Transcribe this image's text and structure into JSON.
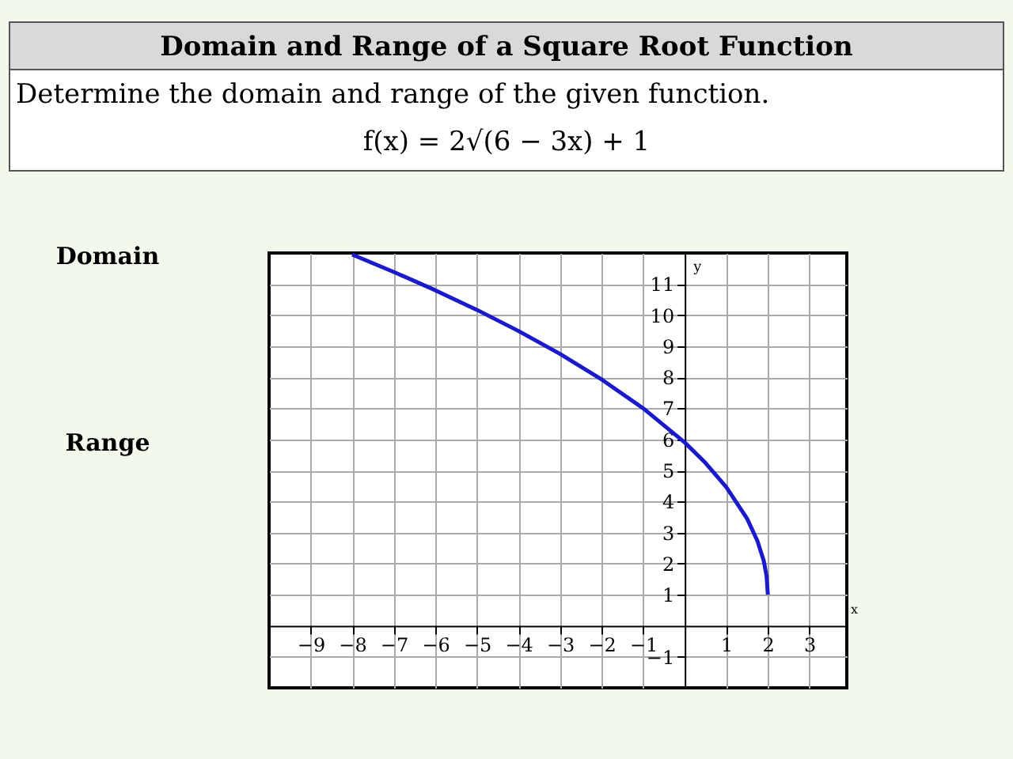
{
  "chart_data": {
    "type": "line",
    "title": "Domain and Range of a Square Root Function",
    "subtitle": "Determine the domain and range of the given function.",
    "annotations": [
      "f(x) = 2√(6 − 3x) + 1",
      "Domain",
      "Range"
    ],
    "xlabel": "x",
    "ylabel": "y",
    "x": [
      -8,
      -7,
      -6,
      -5,
      -4,
      -3,
      -2,
      -1,
      0,
      0.5,
      1,
      1.5,
      1.75,
      1.9,
      1.97,
      2
    ],
    "series": [
      {
        "color": "#1a1acc",
        "values": [
          11.95,
          11.39,
          10.8,
          10.17,
          9.49,
          8.75,
          7.93,
          7.0,
          5.9,
          5.24,
          4.46,
          3.45,
          2.73,
          2.1,
          1.6,
          1.0
        ]
      }
    ],
    "xlim": [
      -10,
      3.9
    ],
    "ylim": [
      -2,
      12
    ],
    "xticks": [
      -9,
      -8,
      -7,
      -6,
      -5,
      -4,
      -3,
      -2,
      -1,
      1,
      2,
      3
    ],
    "yticks": [
      -1,
      1,
      2,
      3,
      4,
      5,
      6,
      7,
      8,
      9,
      10,
      11
    ],
    "grid": true,
    "marker": "none",
    "line_style": "solid"
  }
}
